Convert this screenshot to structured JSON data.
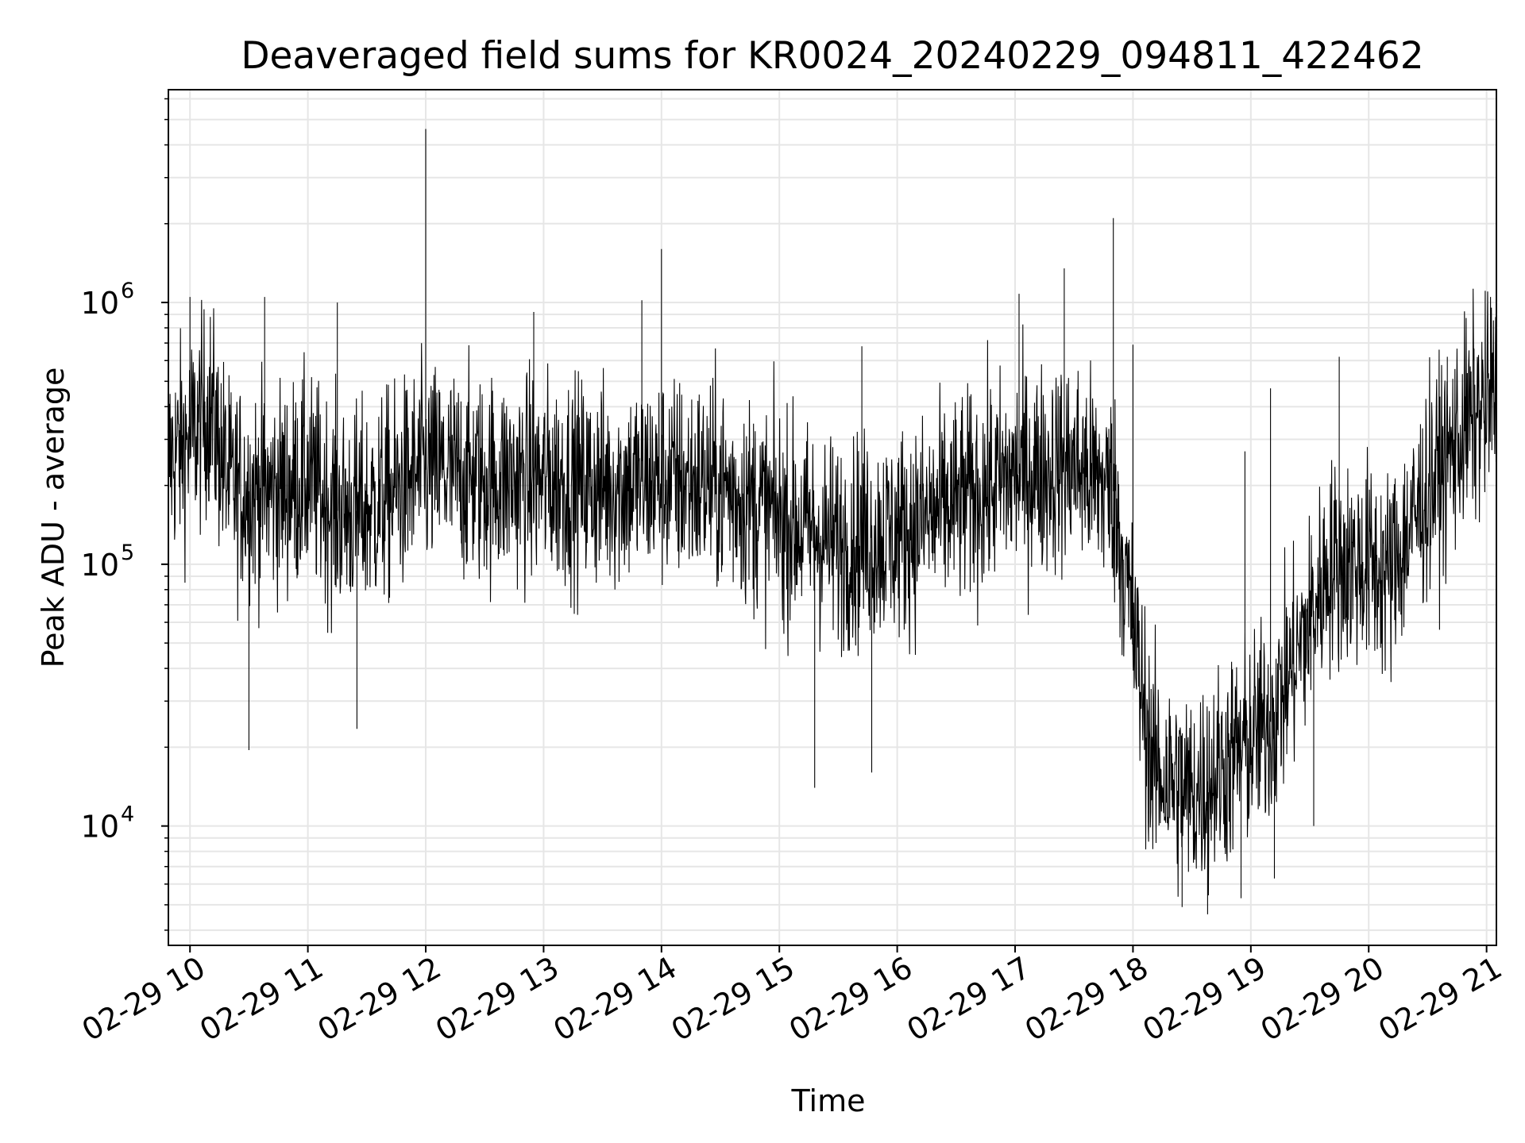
{
  "chart_data": {
    "type": "line",
    "title": "Deaveraged field sums for KR0024_20240229_094811_422462",
    "xlabel": "Time",
    "ylabel": "Peak ADU - average",
    "yscale": "log",
    "ylim": [
      3500,
      6500000
    ],
    "xlim": [
      "2024-02-29T09:49",
      "2024-02-29T21:05"
    ],
    "grid": true,
    "x_ticks": [
      {
        "t": "2024-02-29T10:00",
        "label": "02-29 10"
      },
      {
        "t": "2024-02-29T11:00",
        "label": "02-29 11"
      },
      {
        "t": "2024-02-29T12:00",
        "label": "02-29 12"
      },
      {
        "t": "2024-02-29T13:00",
        "label": "02-29 13"
      },
      {
        "t": "2024-02-29T14:00",
        "label": "02-29 14"
      },
      {
        "t": "2024-02-29T15:00",
        "label": "02-29 15"
      },
      {
        "t": "2024-02-29T16:00",
        "label": "02-29 16"
      },
      {
        "t": "2024-02-29T17:00",
        "label": "02-29 17"
      },
      {
        "t": "2024-02-29T18:00",
        "label": "02-29 18"
      },
      {
        "t": "2024-02-29T19:00",
        "label": "02-29 19"
      },
      {
        "t": "2024-02-29T20:00",
        "label": "02-29 20"
      },
      {
        "t": "2024-02-29T21:00",
        "label": "02-29 21"
      }
    ],
    "y_ticks": [
      {
        "v": 10000,
        "base": "10",
        "exp": "4"
      },
      {
        "v": 100000,
        "base": "10",
        "exp": "5"
      },
      {
        "v": 1000000,
        "base": "10",
        "exp": "6"
      }
    ],
    "line_color": "#000000",
    "grid_color": "#e6e6e6",
    "series": [
      {
        "x": [
          "2024-02-29T09:49",
          "2024-02-29T10:00",
          "2024-02-29T10:10",
          "2024-02-29T10:20",
          "2024-02-29T10:30",
          "2024-02-29T10:45",
          "2024-02-29T11:00",
          "2024-02-29T11:15",
          "2024-02-29T11:30",
          "2024-02-29T11:45",
          "2024-02-29T12:00",
          "2024-02-29T12:30",
          "2024-02-29T13:00",
          "2024-02-29T13:30",
          "2024-02-29T14:00",
          "2024-02-29T14:30",
          "2024-02-29T15:00",
          "2024-02-29T15:30",
          "2024-02-29T16:00",
          "2024-02-29T16:30",
          "2024-02-29T17:00",
          "2024-02-29T17:30",
          "2024-02-29T17:50",
          "2024-02-29T18:10",
          "2024-02-29T18:30",
          "2024-02-29T18:50",
          "2024-02-29T19:10",
          "2024-02-29T19:30",
          "2024-02-29T19:40",
          "2024-02-29T20:00",
          "2024-02-29T20:10",
          "2024-02-29T20:30",
          "2024-02-29T20:50",
          "2024-02-29T21:05"
        ],
        "y": [
          250000,
          300000,
          400000,
          200000,
          190000,
          190000,
          210000,
          160000,
          160000,
          190000,
          230000,
          210000,
          210000,
          200000,
          210000,
          200000,
          150000,
          120000,
          130000,
          170000,
          220000,
          240000,
          190000,
          17000,
          13000,
          18000,
          25000,
          60000,
          100000,
          100000,
          90000,
          190000,
          340000,
          440000
        ],
        "spikes": [
          {
            "t": "2024-02-29T12:00",
            "v": 4600000
          },
          {
            "t": "2024-02-29T17:50",
            "v": 2100000
          },
          {
            "t": "2024-02-29T14:00",
            "v": 1600000
          },
          {
            "t": "2024-02-29T17:25",
            "v": 1350000
          },
          {
            "t": "2024-02-29T10:00",
            "v": 1050000
          },
          {
            "t": "2024-02-29T10:38",
            "v": 1050000
          },
          {
            "t": "2024-02-29T21:02",
            "v": 1050000
          },
          {
            "t": "2024-02-29T13:50",
            "v": 1020000
          },
          {
            "t": "2024-02-29T11:15",
            "v": 1000000
          },
          {
            "t": "2024-02-29T17:02",
            "v": 1080000
          },
          {
            "t": "2024-02-29T12:55",
            "v": 920000
          },
          {
            "t": "2024-02-29T15:42",
            "v": 680000
          },
          {
            "t": "2024-02-29T19:45",
            "v": 620000
          },
          {
            "t": "2024-02-29T20:40",
            "v": 620000
          },
          {
            "t": "2024-02-29T18:00",
            "v": 690000
          },
          {
            "t": "2024-02-29T10:30",
            "v": 19500
          },
          {
            "t": "2024-02-29T11:25",
            "v": 23500
          },
          {
            "t": "2024-02-29T15:18",
            "v": 14000
          },
          {
            "t": "2024-02-29T15:47",
            "v": 16000
          },
          {
            "t": "2024-02-29T18:10",
            "v": 19000
          },
          {
            "t": "2024-02-29T18:38",
            "v": 4600
          },
          {
            "t": "2024-02-29T18:25",
            "v": 4900
          },
          {
            "t": "2024-02-29T18:55",
            "v": 5300
          },
          {
            "t": "2024-02-29T19:12",
            "v": 6300
          },
          {
            "t": "2024-02-29T19:32",
            "v": 10000
          },
          {
            "t": "2024-02-29T19:10",
            "v": 470000
          },
          {
            "t": "2024-02-29T18:57",
            "v": 270000
          }
        ]
      }
    ]
  }
}
